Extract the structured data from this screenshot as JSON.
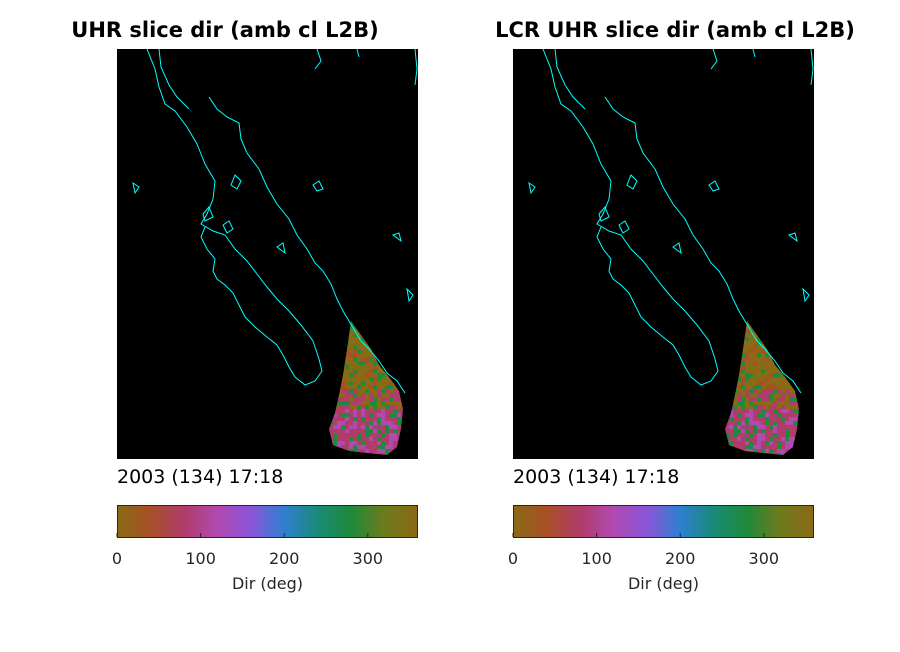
{
  "panels": [
    {
      "title": "UHR slice dir (amb cl L2B)",
      "timestamp": "2003 (134) 17:18"
    },
    {
      "title": "LCR UHR slice dir (amb cl L2B)",
      "timestamp": "2003 (134) 17:18"
    }
  ],
  "colors": {
    "background": "#000000",
    "coastline": "#00ffff",
    "colormap": [
      "#8a6a14",
      "#a84f28",
      "#b03c6a",
      "#b04ab0",
      "#8a55d8",
      "#2f7fd0",
      "#1a8a78",
      "#1e8a3a",
      "#6e7a1e",
      "#8a6a14"
    ]
  },
  "chart_data": [
    {
      "type": "heatmap",
      "title": "UHR slice dir (amb cl L2B)",
      "annotation": "2003 (134) 17:18",
      "colorbar": {
        "label": "Dir (deg)",
        "range": [
          0,
          360
        ],
        "ticks": [
          0,
          100,
          200,
          300
        ]
      },
      "data_description_visible": "wind direction swath over southern tip of Baja California"
    },
    {
      "type": "heatmap",
      "title": "LCR UHR slice dir (amb cl L2B)",
      "annotation": "2003 (134) 17:18",
      "colorbar": {
        "label": "Dir (deg)",
        "range": [
          0,
          360
        ],
        "ticks": [
          0,
          100,
          200,
          300
        ]
      }
    }
  ]
}
